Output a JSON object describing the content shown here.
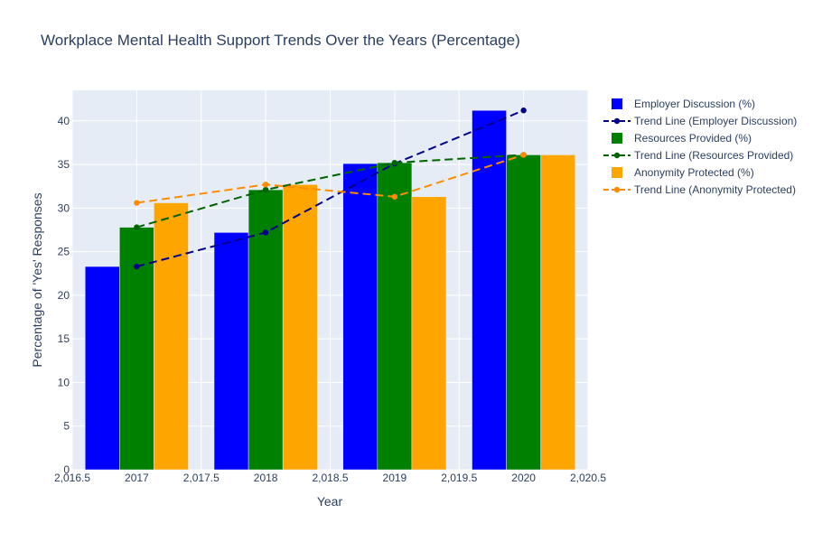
{
  "chart_data": {
    "type": "bar",
    "title": "Workplace Mental Health Support Trends Over the Years (Percentage)",
    "xlabel": "Year",
    "ylabel": "Percentage of 'Yes' Responses",
    "x": [
      2017,
      2018,
      2019,
      2020
    ],
    "xlim": [
      2016.5,
      2020.5
    ],
    "ylim": [
      0,
      43.5
    ],
    "x_ticks": [
      "2,016.5",
      "2017",
      "2,017.5",
      "2018",
      "2,018.5",
      "2019",
      "2,019.5",
      "2020",
      "2,020.5"
    ],
    "y_ticks": [
      "0",
      "5",
      "10",
      "15",
      "20",
      "25",
      "30",
      "35",
      "40"
    ],
    "grid": true,
    "legend_position": "right",
    "bar_series": [
      {
        "name": "Employer Discussion (%)",
        "color": "#0000ff",
        "values": [
          23.3,
          27.2,
          35.1,
          41.2
        ]
      },
      {
        "name": "Resources Provided (%)",
        "color": "#008000",
        "values": [
          27.8,
          32.1,
          35.2,
          36.1
        ]
      },
      {
        "name": "Anonymity Protected (%)",
        "color": "#ffa500",
        "values": [
          30.6,
          32.7,
          31.3,
          36.1
        ]
      }
    ],
    "line_series": [
      {
        "name": "Trend Line (Employer Discussion)",
        "color": "#00008b",
        "values": [
          23.3,
          27.2,
          35.1,
          41.2
        ]
      },
      {
        "name": "Trend Line (Resources Provided)",
        "color": "#006400",
        "values": [
          27.8,
          32.1,
          35.2,
          36.1
        ]
      },
      {
        "name": "Trend Line (Anonymity Protected)",
        "color": "#ff8c00",
        "values": [
          30.6,
          32.7,
          31.3,
          36.1
        ]
      }
    ],
    "legend": [
      {
        "name": "Employer Discussion (%)",
        "kind": "bar",
        "color": "#0000ff"
      },
      {
        "name": "Trend Line (Employer Discussion)",
        "kind": "line",
        "color": "#00008b"
      },
      {
        "name": "Resources Provided (%)",
        "kind": "bar",
        "color": "#008000"
      },
      {
        "name": "Trend Line (Resources Provided)",
        "kind": "line",
        "color": "#006400"
      },
      {
        "name": "Anonymity Protected (%)",
        "kind": "bar",
        "color": "#ffa500"
      },
      {
        "name": "Trend Line (Anonymity Protected)",
        "kind": "line",
        "color": "#ff8c00"
      }
    ]
  }
}
